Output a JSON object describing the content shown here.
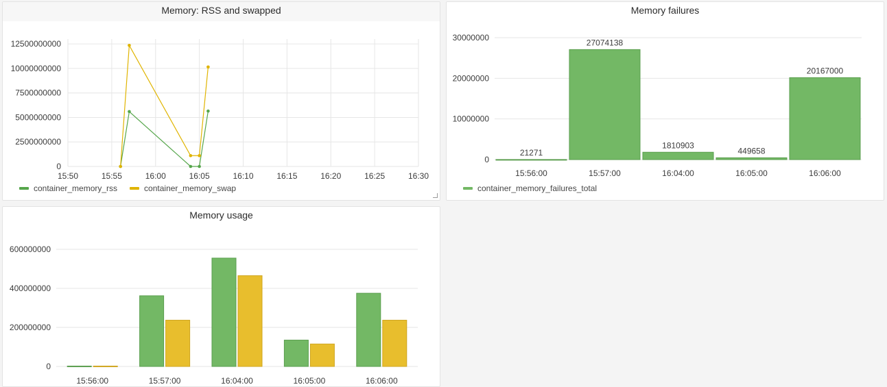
{
  "colors": {
    "green": "#73b865",
    "green_line": "#56a64b",
    "yellow": "#e8be2d",
    "yellow_line": "#e0b400",
    "grid": "#e6e6e6"
  },
  "panels": {
    "rss": {
      "title": "Memory: RSS and swapped"
    },
    "failures": {
      "title": "Memory failures"
    },
    "usage": {
      "title": "Memory usage"
    }
  },
  "chart_data": [
    {
      "type": "line",
      "title": "Memory: RSS and swapped",
      "x_ticks": [
        "15:50",
        "15:55",
        "16:00",
        "16:05",
        "16:10",
        "16:15",
        "16:20",
        "16:25",
        "16:30"
      ],
      "y_ticks": [
        "0",
        "2500000000",
        "5000000000",
        "7500000000",
        "10000000000",
        "12500000000"
      ],
      "xlim": [
        "15:50",
        "16:30"
      ],
      "ylim": [
        0,
        13000000000
      ],
      "legend": "bottom-left",
      "grid": true,
      "series": [
        {
          "name": "container_memory_rss",
          "color": "#56a64b",
          "points": [
            [
              "15:56",
              0
            ],
            [
              "15:57",
              5600000000
            ],
            [
              "16:04",
              0
            ],
            [
              "16:05",
              0
            ],
            [
              "16:06",
              5650000000
            ]
          ]
        },
        {
          "name": "container_memory_swap",
          "color": "#e0b400",
          "points": [
            [
              "15:56",
              0
            ],
            [
              "15:57",
              12350000000
            ],
            [
              "16:04",
              1100000000
            ],
            [
              "16:05",
              1100000000
            ],
            [
              "16:06",
              10150000000
            ]
          ]
        }
      ]
    },
    {
      "type": "bar",
      "title": "Memory failures",
      "categories": [
        "15:56:00",
        "15:57:00",
        "16:04:00",
        "16:05:00",
        "16:06:00"
      ],
      "y_ticks": [
        "0",
        "10000000",
        "20000000",
        "30000000"
      ],
      "ylim": [
        0,
        30000000
      ],
      "legend": "bottom-left",
      "grid": true,
      "series": [
        {
          "name": "container_memory_failures_total",
          "color": "#73b865",
          "values": [
            21271,
            27074138,
            1810903,
            449658,
            20167000
          ],
          "labels": [
            "21271",
            "27074138",
            "1810903",
            "449658",
            "20167000"
          ]
        }
      ]
    },
    {
      "type": "bar",
      "title": "Memory usage",
      "categories": [
        "15:56:00",
        "15:57:00",
        "16:04:00",
        "16:05:00",
        "16:06:00"
      ],
      "y_ticks": [
        "0",
        "200000000",
        "400000000",
        "600000000"
      ],
      "ylim": [
        0,
        600000000
      ],
      "grid": true,
      "series": [
        {
          "color": "#73b865",
          "values": [
            2000000,
            362000000,
            555000000,
            135000000,
            375000000
          ]
        },
        {
          "color": "#e8be2d",
          "values": [
            2000000,
            237000000,
            465000000,
            115000000,
            237000000
          ]
        }
      ]
    }
  ]
}
